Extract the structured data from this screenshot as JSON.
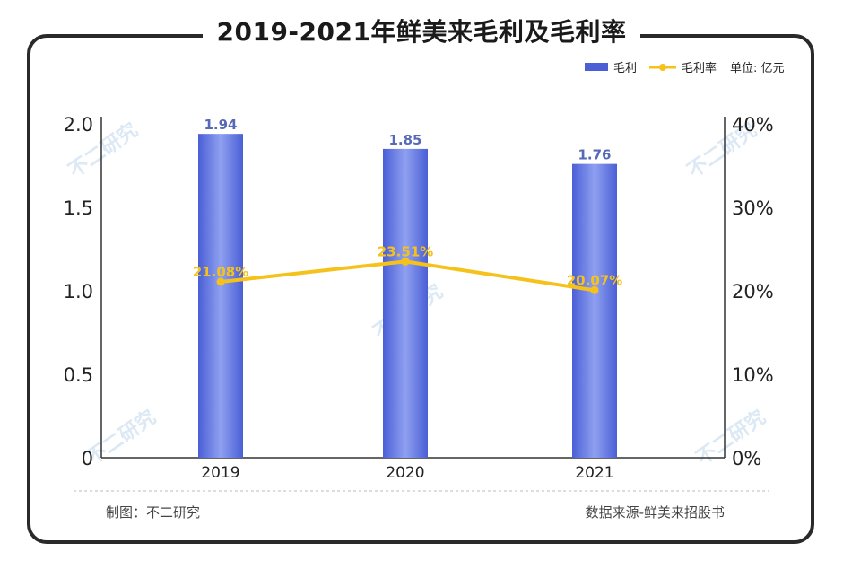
{
  "title": "2019-2021年鲜美来毛利及毛利率",
  "legend": {
    "bar_label": "毛利",
    "line_label": "毛利率",
    "unit": "单位: 亿元"
  },
  "footer": {
    "left": "制图：不二研究",
    "right": "数据来源-鲜美来招股书"
  },
  "watermark_text": "不二研究",
  "colors": {
    "bar": "#4a5fd6",
    "bar_highlight": "#8fa0f0",
    "line": "#f5c21b",
    "bar_label": "#5569b8",
    "axis": "#333333",
    "frame": "#2a2a2a"
  },
  "chart_data": {
    "type": "bar",
    "categories": [
      "2019",
      "2020",
      "2021"
    ],
    "series": [
      {
        "name": "毛利",
        "type": "bar",
        "axis": "left",
        "values": [
          1.94,
          1.85,
          1.76
        ],
        "labels": [
          "1.94",
          "1.85",
          "1.76"
        ]
      },
      {
        "name": "毛利率",
        "type": "line",
        "axis": "right",
        "values": [
          21.08,
          23.51,
          20.07
        ],
        "labels": [
          "21.08%",
          "23.51%",
          "20.07%"
        ]
      }
    ],
    "y_left": {
      "min": 0,
      "max": 2.0,
      "ticks": [
        "0",
        "0.5",
        "1.0",
        "1.5",
        "2.0"
      ]
    },
    "y_right": {
      "min": 0,
      "max": 40,
      "ticks": [
        "0%",
        "10%",
        "20%",
        "30%",
        "40%"
      ]
    },
    "grid": false,
    "legend_position": "top-right"
  }
}
